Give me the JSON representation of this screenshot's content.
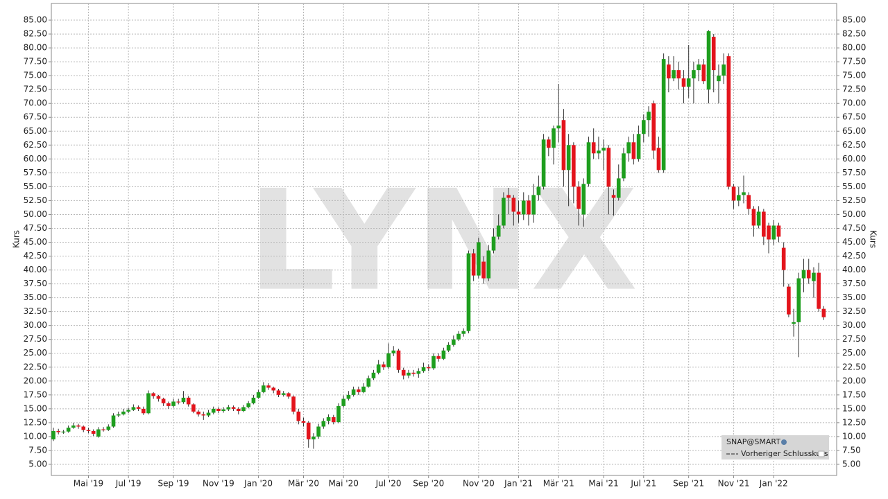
{
  "chart_data": {
    "type": "candlestick",
    "watermark": "LYNX",
    "ylabel": "Kurs",
    "legend": {
      "symbol": "SNAP@SMART",
      "entry": "Vorheriger Schlusskurs"
    },
    "up_color": "#1e9e1e",
    "down_color": "#e3141c",
    "grid": true,
    "categories": [
      null,
      null,
      null,
      null,
      null,
      null,
      null,
      "Mai '19",
      null,
      null,
      null,
      null,
      null,
      null,
      null,
      "Jul '19",
      null,
      null,
      null,
      null,
      null,
      null,
      null,
      null,
      "Sep '19",
      null,
      null,
      null,
      null,
      null,
      null,
      null,
      null,
      "Nov '19",
      null,
      null,
      null,
      null,
      null,
      null,
      null,
      "Jan '20",
      null,
      null,
      null,
      null,
      null,
      null,
      null,
      null,
      "Mär '20",
      null,
      null,
      null,
      null,
      null,
      null,
      null,
      "Mai '20",
      null,
      null,
      null,
      null,
      null,
      null,
      null,
      null,
      "Jul '20",
      null,
      null,
      null,
      null,
      null,
      null,
      null,
      "Sep '20",
      null,
      null,
      null,
      null,
      null,
      null,
      null,
      null,
      null,
      "Nov '20",
      null,
      null,
      null,
      null,
      null,
      null,
      null,
      "Jan '21",
      null,
      null,
      null,
      null,
      null,
      null,
      null,
      "Mär '21",
      null,
      null,
      null,
      null,
      null,
      null,
      null,
      null,
      "Mai '21",
      null,
      null,
      null,
      null,
      null,
      null,
      null,
      "Jul '21",
      null,
      null,
      null,
      null,
      null,
      null,
      null,
      null,
      "Sep '21",
      null,
      null,
      null,
      null,
      null,
      null,
      null,
      null,
      "Nov '21",
      null,
      null,
      null,
      null,
      null,
      null,
      null,
      "Jan '22",
      null,
      null,
      null,
      null,
      null,
      null,
      null,
      null,
      null,
      null
    ],
    "open": [
      9.5,
      11.0,
      10.8,
      10.9,
      11.6,
      12.0,
      11.8,
      11.2,
      11.0,
      10.0,
      11.3,
      11.2,
      11.8,
      13.8,
      14.0,
      14.5,
      14.8,
      15.3,
      15.0,
      14.2,
      17.8,
      17.3,
      16.8,
      16.0,
      15.5,
      16.3,
      16.2,
      17.0,
      15.8,
      14.5,
      14.0,
      13.8,
      14.3,
      15.0,
      14.6,
      14.9,
      15.3,
      15.0,
      14.6,
      15.3,
      16.0,
      17.0,
      18.0,
      19.2,
      18.8,
      18.3,
      17.5,
      17.8,
      17.2,
      14.5,
      12.8,
      12.5,
      9.5,
      10.0,
      11.8,
      12.8,
      13.5,
      12.6,
      15.5,
      16.8,
      17.5,
      18.5,
      18.0,
      19.0,
      20.5,
      21.5,
      23.0,
      22.5,
      25.0,
      25.5,
      22.0,
      21.0,
      21.5,
      21.3,
      21.8,
      22.5,
      22.3,
      24.5,
      24.0,
      25.5,
      26.5,
      27.5,
      28.5,
      29.0,
      43.0,
      39.0,
      41.5,
      38.5,
      43.5,
      46.0,
      48.0,
      53.5,
      53.0,
      50.5,
      50.0,
      52.5,
      50.0,
      53.5,
      55.0,
      63.5,
      62.0,
      65.5,
      67.0,
      58.0,
      62.5,
      55.0,
      50.0,
      55.5,
      63.0,
      61.0,
      61.5,
      62.0,
      53.5,
      53.0,
      56.5,
      61.0,
      63.0,
      60.0,
      64.5,
      67.0,
      70.0,
      62.0,
      58.0,
      77.0,
      74.5,
      76.0,
      74.5,
      73.0,
      74.5,
      76.0,
      77.0,
      72.5,
      82.0,
      74.0,
      75.0,
      78.5,
      55.0,
      52.5,
      53.5,
      53.5,
      51.0,
      48.0,
      50.5,
      48.0,
      45.5,
      48.0,
      44.0,
      37.0,
      30.3,
      30.6,
      38.5,
      40.0,
      38.0,
      39.5,
      33.0
    ],
    "high": [
      11.6,
      11.4,
      11.2,
      12.0,
      12.5,
      12.3,
      12.0,
      11.6,
      11.3,
      11.7,
      11.7,
      12.2,
      14.2,
      14.5,
      15.0,
      15.2,
      15.8,
      15.6,
      15.4,
      18.3,
      18.0,
      17.5,
      17.0,
      16.3,
      16.8,
      16.8,
      18.2,
      17.3,
      16.0,
      14.8,
      14.5,
      14.8,
      15.4,
      15.3,
      15.3,
      15.7,
      15.6,
      15.3,
      15.7,
      16.4,
      17.5,
      18.4,
      19.8,
      19.6,
      19.0,
      18.6,
      18.2,
      18.0,
      17.4,
      15.0,
      13.4,
      12.8,
      10.6,
      12.3,
      13.3,
      14.0,
      13.9,
      16.0,
      17.4,
      18.2,
      19.0,
      19.0,
      19.6,
      21.0,
      22.0,
      23.8,
      23.5,
      26.8,
      26.3,
      25.8,
      22.4,
      22.0,
      22.0,
      22.3,
      23.3,
      23.0,
      25.0,
      25.0,
      26.0,
      27.0,
      28.2,
      29.0,
      29.5,
      43.5,
      43.8,
      45.8,
      42.5,
      44.5,
      47.5,
      50.0,
      54.0,
      54.8,
      53.5,
      52.5,
      54.0,
      53.5,
      55.5,
      57.0,
      64.5,
      64.0,
      66.0,
      73.5,
      69.0,
      64.5,
      63.0,
      56.0,
      56.5,
      64.0,
      65.5,
      64.0,
      63.5,
      62.5,
      54.5,
      59.0,
      62.0,
      64.0,
      64.5,
      66.0,
      68.0,
      69.5,
      70.5,
      64.0,
      79.0,
      78.5,
      78.5,
      77.5,
      76.0,
      80.5,
      77.5,
      78.0,
      78.0,
      83.2,
      82.5,
      77.0,
      79.0,
      79.0,
      55.5,
      55.0,
      57.0,
      54.0,
      51.5,
      51.5,
      51.0,
      48.5,
      49.0,
      48.5,
      45.0,
      37.5,
      33.0,
      39.5,
      42.0,
      42.0,
      40.5,
      41.3,
      33.5
    ],
    "low": [
      9.2,
      10.4,
      10.5,
      10.7,
      11.4,
      11.4,
      10.8,
      10.6,
      10.1,
      9.8,
      10.9,
      11.0,
      11.6,
      13.5,
      13.8,
      14.2,
      14.6,
      14.6,
      13.9,
      14.0,
      16.8,
      16.3,
      15.5,
      15.0,
      15.2,
      15.8,
      15.9,
      15.4,
      14.2,
      13.6,
      13.0,
      13.5,
      14.0,
      14.2,
      14.3,
      14.6,
      14.6,
      14.0,
      14.4,
      15.1,
      15.8,
      16.8,
      17.8,
      18.4,
      17.8,
      17.1,
      17.2,
      16.8,
      14.0,
      12.2,
      11.8,
      8.0,
      7.8,
      9.6,
      11.4,
      12.2,
      12.2,
      12.4,
      15.2,
      16.5,
      17.2,
      17.5,
      17.8,
      18.8,
      20.2,
      21.2,
      22.0,
      22.2,
      24.5,
      21.5,
      20.3,
      20.5,
      20.8,
      20.6,
      21.5,
      21.8,
      22.0,
      23.5,
      23.8,
      25.2,
      26.2,
      27.2,
      28.0,
      28.6,
      38.0,
      38.5,
      37.5,
      38.0,
      43.0,
      45.5,
      47.5,
      50.0,
      48.0,
      48.5,
      49.0,
      48.0,
      48.5,
      52.5,
      54.5,
      60.5,
      59.0,
      63.0,
      55.0,
      51.5,
      52.0,
      48.0,
      47.8,
      55.0,
      60.0,
      60.0,
      58.0,
      50.0,
      49.8,
      52.5,
      56.0,
      59.5,
      59.0,
      59.5,
      63.0,
      64.0,
      60.0,
      57.5,
      57.5,
      72.0,
      74.0,
      72.5,
      70.0,
      71.0,
      70.0,
      74.0,
      73.5,
      70.0,
      72.0,
      70.0,
      73.5,
      54.5,
      51.0,
      51.5,
      52.0,
      50.0,
      46.0,
      47.5,
      44.5,
      43.0,
      44.5,
      45.0,
      37.0,
      31.5,
      28.0,
      24.3,
      36.0,
      37.5,
      35.0,
      32.5,
      31.0
    ],
    "close": [
      11.0,
      10.8,
      10.9,
      11.6,
      12.0,
      11.8,
      11.2,
      11.0,
      10.5,
      11.3,
      11.2,
      11.8,
      13.8,
      14.0,
      14.5,
      14.8,
      15.3,
      15.0,
      14.2,
      17.8,
      17.3,
      16.8,
      16.0,
      15.5,
      16.3,
      16.2,
      17.0,
      15.8,
      14.5,
      14.0,
      13.8,
      14.3,
      15.0,
      14.6,
      14.9,
      15.3,
      15.0,
      14.6,
      15.3,
      16.0,
      17.0,
      18.0,
      19.2,
      18.8,
      18.3,
      17.5,
      17.8,
      17.2,
      14.5,
      12.8,
      12.5,
      9.5,
      10.0,
      11.8,
      12.8,
      13.5,
      12.6,
      15.5,
      16.8,
      17.5,
      18.5,
      18.0,
      19.0,
      20.5,
      21.5,
      23.0,
      22.5,
      25.0,
      25.5,
      22.0,
      21.0,
      21.5,
      21.3,
      21.8,
      22.5,
      22.3,
      24.5,
      24.0,
      25.5,
      26.5,
      27.5,
      28.5,
      29.0,
      43.0,
      39.0,
      45.0,
      38.5,
      43.5,
      46.0,
      48.0,
      53.0,
      53.0,
      50.5,
      50.0,
      52.5,
      50.0,
      53.5,
      55.0,
      63.5,
      62.0,
      65.5,
      66.0,
      58.0,
      62.5,
      55.0,
      51.0,
      55.5,
      63.0,
      61.0,
      61.5,
      62.0,
      55.0,
      53.0,
      56.5,
      61.0,
      63.0,
      60.0,
      64.5,
      67.0,
      68.5,
      61.5,
      58.0,
      78.0,
      74.5,
      76.0,
      74.5,
      73.0,
      74.5,
      76.0,
      77.0,
      74.0,
      83.0,
      76.0,
      75.0,
      77.0,
      55.0,
      52.5,
      53.5,
      54.0,
      51.0,
      48.0,
      50.5,
      46.0,
      45.5,
      48.0,
      46.0,
      40.0,
      32.0,
      30.6,
      38.5,
      40.0,
      38.5,
      39.5,
      33.0,
      31.5
    ],
    "ylim": [
      3,
      88
    ],
    "yticks": [
      {
        "value": 5,
        "label": "5.00"
      },
      {
        "value": 7.5,
        "label": "7.50"
      },
      {
        "value": 10,
        "label": "10.00"
      },
      {
        "value": 12.5,
        "label": "12.50"
      },
      {
        "value": 15,
        "label": "15.00"
      },
      {
        "value": 17.5,
        "label": "17.50"
      },
      {
        "value": 20,
        "label": "20.00"
      },
      {
        "value": 22.5,
        "label": "22.50"
      },
      {
        "value": 25,
        "label": "25.00"
      },
      {
        "value": 27.5,
        "label": "27.50"
      },
      {
        "value": 30,
        "label": "30.00"
      },
      {
        "value": 32.5,
        "label": "32.50"
      },
      {
        "value": 35,
        "label": "35.00"
      },
      {
        "value": 37.5,
        "label": "37.50"
      },
      {
        "value": 40,
        "label": "40.00"
      },
      {
        "value": 42.5,
        "label": "42.50"
      },
      {
        "value": 45,
        "label": "45.00"
      },
      {
        "value": 47.5,
        "label": "47.50"
      },
      {
        "value": 50,
        "label": "50.00"
      },
      {
        "value": 52.5,
        "label": "52.50"
      },
      {
        "value": 55,
        "label": "55.00"
      },
      {
        "value": 57.5,
        "label": "57.50"
      },
      {
        "value": 60,
        "label": "60.00"
      },
      {
        "value": 62.5,
        "label": "62.50"
      },
      {
        "value": 65,
        "label": "65.00"
      },
      {
        "value": 67.5,
        "label": "67.50"
      },
      {
        "value": 70,
        "label": "70.00"
      },
      {
        "value": 72.5,
        "label": "72.50"
      },
      {
        "value": 75,
        "label": "75.00"
      },
      {
        "value": 77.5,
        "label": "77.50"
      },
      {
        "value": 80,
        "label": "80.00"
      },
      {
        "value": 82.5,
        "label": "82.50"
      },
      {
        "value": 85,
        "label": "85.00"
      }
    ]
  }
}
